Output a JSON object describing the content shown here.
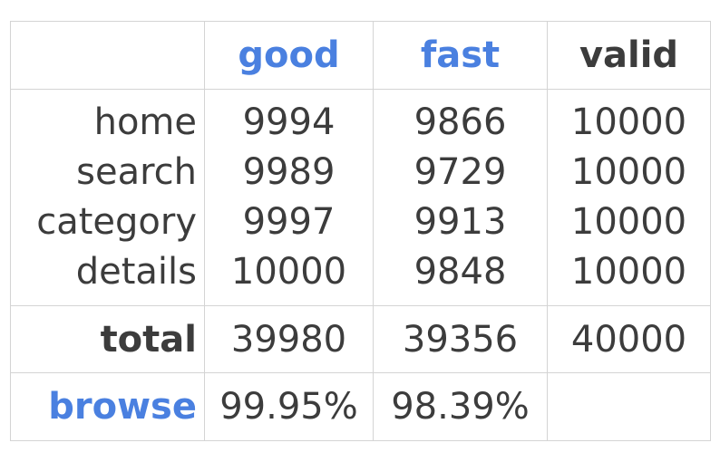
{
  "chart_data": {
    "type": "table",
    "columns": [
      "good",
      "fast",
      "valid"
    ],
    "rows": [
      {
        "label": "home",
        "values": [
          "9994",
          "9866",
          "10000"
        ]
      },
      {
        "label": "search",
        "values": [
          "9989",
          "9729",
          "10000"
        ]
      },
      {
        "label": "category",
        "values": [
          "9997",
          "9913",
          "10000"
        ]
      },
      {
        "label": "details",
        "values": [
          "10000",
          "9848",
          "10000"
        ]
      }
    ],
    "total": {
      "label": "total",
      "values": [
        "39980",
        "39356",
        "40000"
      ]
    },
    "browse": {
      "label": "browse",
      "values": [
        "99.95%",
        "98.39%",
        ""
      ]
    },
    "colors": {
      "accent_blue": "#4a80e0",
      "text_dark": "#3c3c3c",
      "border": "#d4d4d4"
    }
  }
}
